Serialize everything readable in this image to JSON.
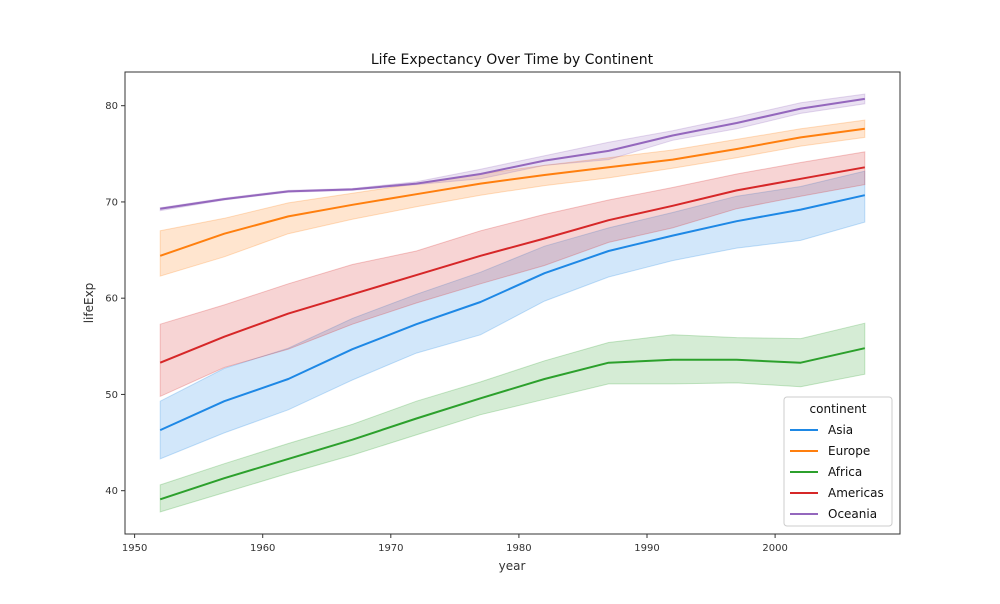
{
  "chart_data": {
    "type": "line",
    "title": "Life Expectancy Over Time by Continent",
    "xlabel": "year",
    "ylabel": "lifeExp",
    "xlim": [
      1949.25,
      2009.75
    ],
    "ylim": [
      35.5,
      83.5
    ],
    "xticks": [
      1950,
      1960,
      1970,
      1980,
      1990,
      2000
    ],
    "yticks": [
      40,
      50,
      60,
      70,
      80
    ],
    "grid": false,
    "legend": {
      "title": "continent",
      "placement": "lower-right"
    },
    "x": [
      1952,
      1957,
      1962,
      1967,
      1972,
      1977,
      1982,
      1987,
      1992,
      1997,
      2002,
      2007
    ],
    "series": [
      {
        "name": "Asia",
        "color": "#1e88e5",
        "values": [
          46.3,
          49.3,
          51.6,
          54.7,
          57.3,
          59.6,
          62.6,
          64.9,
          66.5,
          68.0,
          69.2,
          70.7
        ],
        "lower": [
          43.3,
          46.0,
          48.4,
          51.5,
          54.3,
          56.2,
          59.7,
          62.2,
          63.9,
          65.2,
          66.0,
          67.9
        ],
        "upper": [
          49.3,
          52.7,
          54.8,
          57.9,
          60.4,
          62.7,
          65.4,
          67.3,
          68.9,
          70.6,
          71.6,
          73.2
        ]
      },
      {
        "name": "Europe",
        "color": "#ff7f0e",
        "values": [
          64.4,
          66.7,
          68.5,
          69.7,
          70.8,
          71.9,
          72.8,
          73.6,
          74.4,
          75.5,
          76.7,
          77.6
        ],
        "lower": [
          62.3,
          64.3,
          66.7,
          68.2,
          69.5,
          70.7,
          71.7,
          72.5,
          73.5,
          74.6,
          75.8,
          76.7
        ],
        "upper": [
          67.0,
          68.3,
          69.9,
          70.9,
          71.9,
          72.9,
          73.8,
          74.6,
          75.4,
          76.5,
          77.6,
          78.5
        ]
      },
      {
        "name": "Africa",
        "color": "#2ca02c",
        "values": [
          39.1,
          41.3,
          43.3,
          45.3,
          47.5,
          49.6,
          51.6,
          53.3,
          53.6,
          53.6,
          53.3,
          54.8
        ],
        "lower": [
          37.8,
          39.8,
          41.8,
          43.7,
          45.8,
          47.9,
          49.5,
          51.1,
          51.1,
          51.2,
          50.8,
          52.1
        ],
        "upper": [
          40.6,
          42.8,
          44.9,
          46.9,
          49.3,
          51.3,
          53.5,
          55.4,
          56.2,
          55.9,
          55.8,
          57.4
        ]
      },
      {
        "name": "Americas",
        "color": "#d62728",
        "values": [
          53.3,
          56.0,
          58.4,
          60.4,
          62.4,
          64.4,
          66.2,
          68.1,
          69.6,
          71.2,
          72.4,
          73.6
        ],
        "lower": [
          49.8,
          52.8,
          54.7,
          57.3,
          59.5,
          61.5,
          63.4,
          65.8,
          67.3,
          69.3,
          70.6,
          71.8
        ],
        "upper": [
          57.3,
          59.3,
          61.5,
          63.5,
          64.9,
          67.0,
          68.7,
          70.2,
          71.5,
          72.9,
          74.1,
          75.2
        ]
      },
      {
        "name": "Oceania",
        "color": "#9467bd",
        "values": [
          69.3,
          70.3,
          71.1,
          71.3,
          71.9,
          72.9,
          74.3,
          75.3,
          76.9,
          78.2,
          79.7,
          80.7
        ],
        "lower": [
          69.1,
          70.2,
          71.0,
          71.2,
          71.8,
          72.4,
          73.8,
          74.4,
          76.4,
          77.6,
          79.2,
          80.2
        ],
        "upper": [
          69.4,
          70.4,
          71.2,
          71.4,
          72.1,
          73.4,
          74.8,
          76.2,
          77.4,
          78.8,
          80.3,
          81.2
        ]
      }
    ]
  }
}
